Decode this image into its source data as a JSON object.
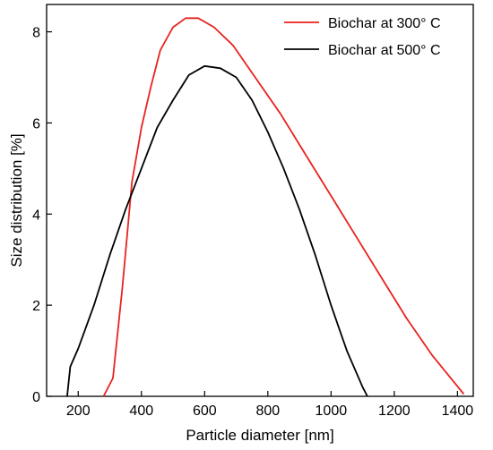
{
  "chart_data": {
    "type": "line",
    "xlabel": "Particle diameter [nm]",
    "ylabel": "Size distribution  [%]",
    "xlim": [
      100,
      1450
    ],
    "ylim": [
      0,
      8.6
    ],
    "xticks": [
      200,
      400,
      600,
      800,
      1000,
      1200,
      1400
    ],
    "yticks": [
      0,
      2,
      4,
      6,
      8
    ],
    "grid": false,
    "legend_position": "top-right",
    "series": [
      {
        "name": "Biochar at 300° C",
        "color": "#e8231f",
        "x": [
          280,
          310,
          340,
          370,
          400,
          430,
          460,
          500,
          540,
          580,
          630,
          690,
          760,
          840,
          920,
          1000,
          1080,
          1160,
          1240,
          1320,
          1420
        ],
        "y": [
          0,
          0.4,
          2.4,
          4.7,
          5.9,
          6.8,
          7.6,
          8.1,
          8.3,
          8.3,
          8.1,
          7.7,
          7.0,
          6.2,
          5.3,
          4.4,
          3.5,
          2.6,
          1.7,
          0.9,
          0.05
        ]
      },
      {
        "name": "Biochar at 500° C",
        "color": "#000000",
        "x": [
          165,
          175,
          200,
          250,
          300,
          350,
          400,
          450,
          500,
          550,
          600,
          650,
          700,
          750,
          800,
          850,
          900,
          950,
          1000,
          1050,
          1100,
          1115
        ],
        "y": [
          0,
          0.65,
          1.05,
          2.0,
          3.1,
          4.1,
          5.0,
          5.9,
          6.5,
          7.05,
          7.25,
          7.2,
          7.0,
          6.5,
          5.8,
          5.0,
          4.1,
          3.1,
          2.0,
          1.0,
          0.2,
          0
        ]
      }
    ]
  }
}
